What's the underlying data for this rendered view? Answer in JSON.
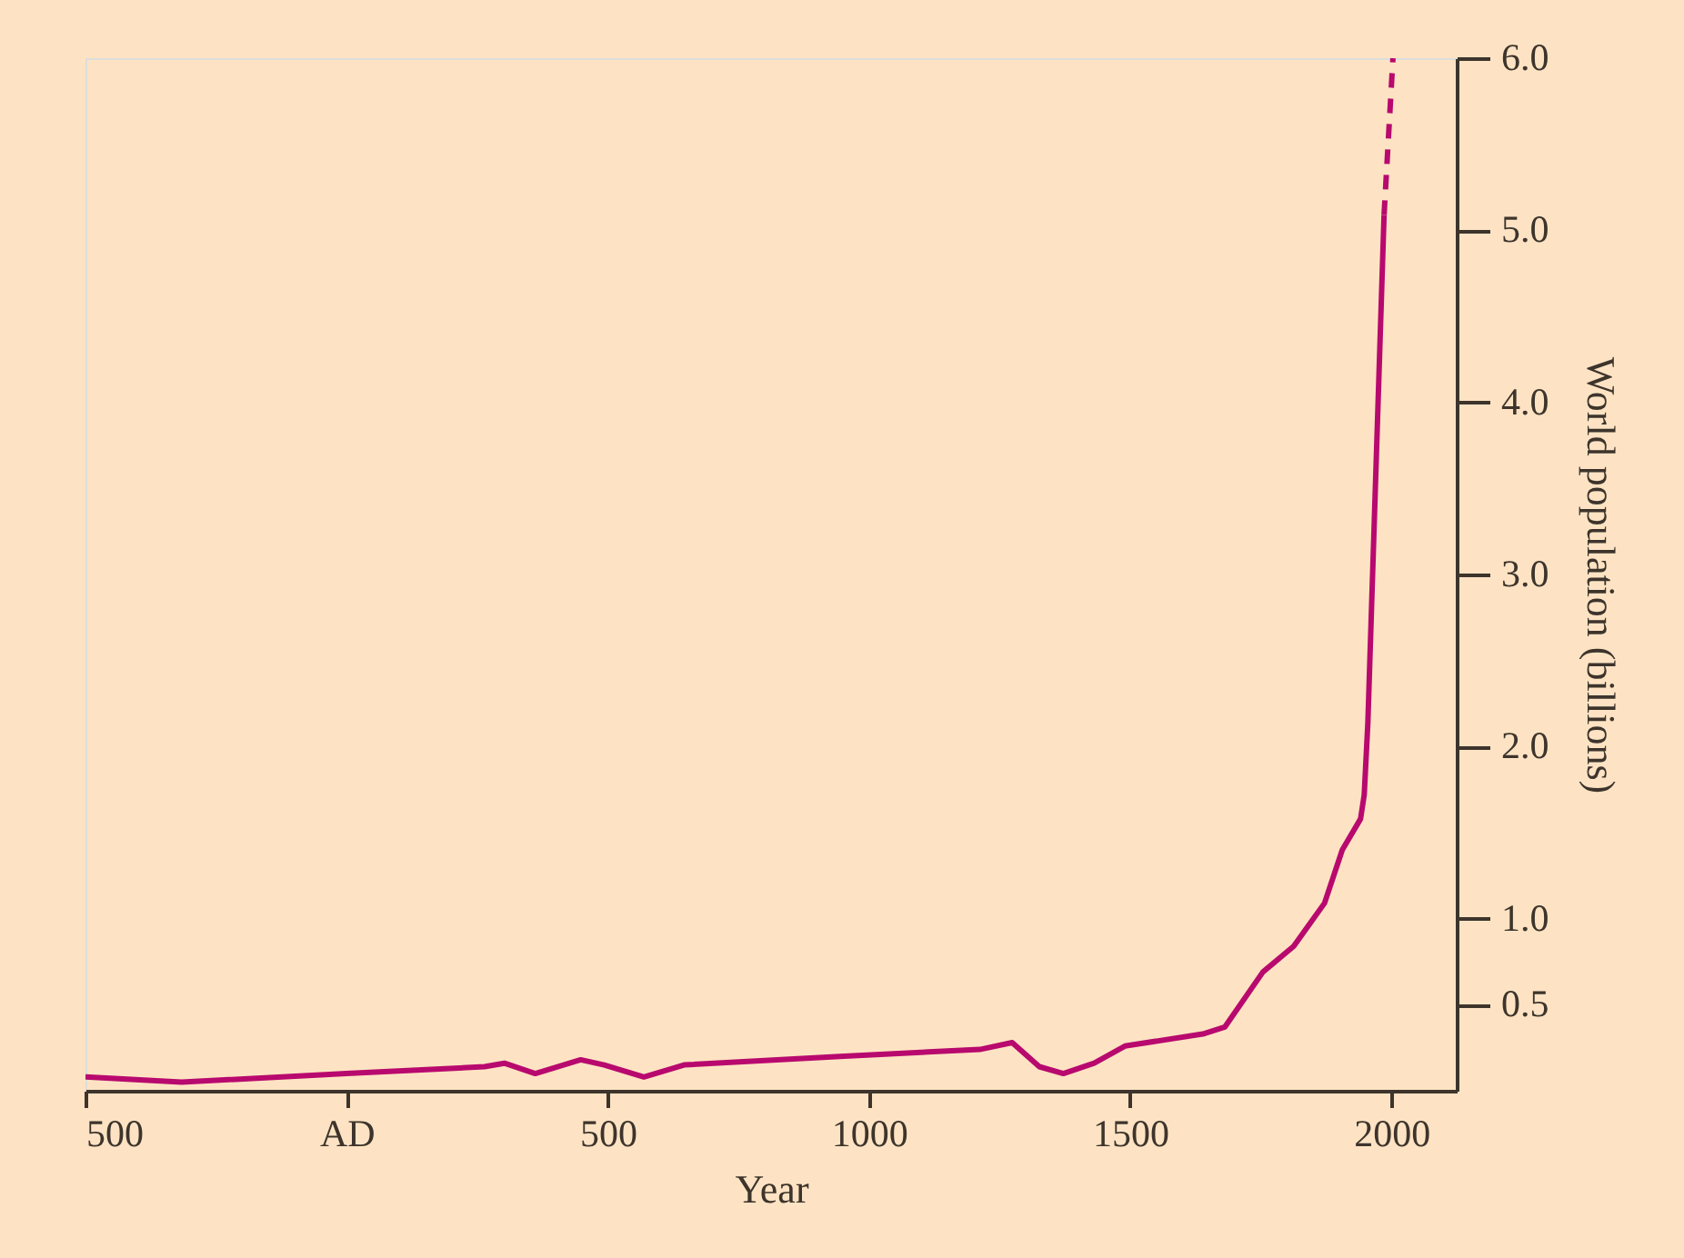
{
  "chart_data": {
    "type": "line",
    "xlabel": "Year",
    "ylabel": "World population (billions)",
    "xlim": [
      -500,
      2125
    ],
    "ylim": [
      0,
      6.0
    ],
    "xticks": [
      {
        "value": -500,
        "label": "500"
      },
      {
        "value": 0,
        "label": "AD"
      },
      500,
      1000,
      1500,
      2000
    ],
    "yticks": [
      0.5,
      {
        "value": 1,
        "label": "1.0"
      },
      {
        "value": 2,
        "label": "2.0"
      },
      {
        "value": 3,
        "label": "3.0"
      },
      {
        "value": 4,
        "label": "4.0"
      },
      {
        "value": 5,
        "label": "5.0"
      },
      {
        "value": 6,
        "label": "6.0"
      }
    ],
    "grid": false,
    "series": [
      {
        "color": "#b8096e",
        "line_style": "solid",
        "x": [
          -500,
          -316,
          0,
          264,
          302,
          361,
          448,
          493,
          569,
          646,
          944,
          1212,
          1274,
          1326,
          1372,
          1431,
          1490,
          1639,
          1681,
          1754,
          1813,
          1872,
          1906,
          1941,
          1948,
          1955,
          1986
        ],
        "values": [
          0.08,
          0.05,
          0.1,
          0.14,
          0.16,
          0.1,
          0.18,
          0.15,
          0.08,
          0.15,
          0.2,
          0.24,
          0.28,
          0.14,
          0.1,
          0.16,
          0.26,
          0.33,
          0.37,
          0.69,
          0.84,
          1.09,
          1.4,
          1.58,
          1.72,
          2.14,
          5.09
        ]
      },
      {
        "color": "#b8096e",
        "line_style": "dashed",
        "x": [
          1986,
          2003
        ],
        "values": [
          5.09,
          6.0
        ]
      }
    ]
  }
}
